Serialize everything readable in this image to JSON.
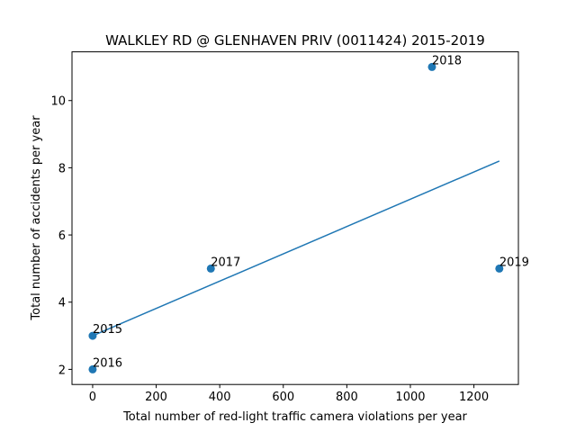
{
  "chart_data": {
    "type": "scatter",
    "title": "WALKLEY RD @ GLENHAVEN PRIV (0011424) 2015-2019",
    "xlabel": "Total number of red-light traffic camera violations per year",
    "ylabel": "Total number of accidents per year",
    "xlim": [
      -65,
      1340
    ],
    "ylim": [
      1.55,
      11.45
    ],
    "xticks": [
      0,
      200,
      400,
      600,
      800,
      1000,
      1200
    ],
    "yticks": [
      2,
      4,
      6,
      8,
      10
    ],
    "grid": false,
    "points": [
      {
        "label": "2015",
        "x": 0,
        "y": 3
      },
      {
        "label": "2016",
        "x": 0,
        "y": 2
      },
      {
        "label": "2017",
        "x": 372,
        "y": 5
      },
      {
        "label": "2018",
        "x": 1068,
        "y": 11
      },
      {
        "label": "2019",
        "x": 1280,
        "y": 5
      }
    ],
    "trendline": {
      "x": [
        0,
        1280
      ],
      "y": [
        3.0,
        8.2
      ]
    },
    "colors": {
      "marker": "#1f77b4",
      "trendline": "#1f77b4",
      "axes": "#000000"
    }
  }
}
